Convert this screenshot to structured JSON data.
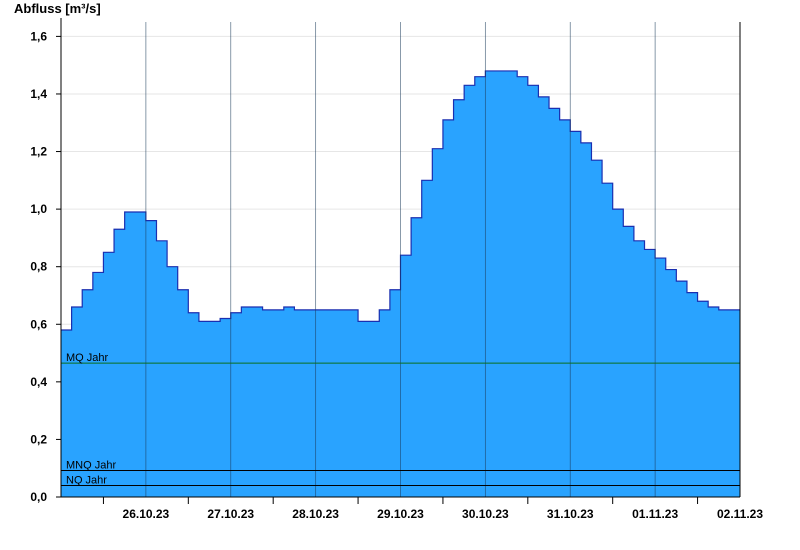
{
  "chart_data": {
    "type": "area",
    "title": "",
    "ylabel": "Abfluss [m³/s]",
    "xlabel": "",
    "ylim": [
      0,
      1.65
    ],
    "yticks": [
      0.0,
      0.2,
      0.4,
      0.6,
      0.8,
      1.0,
      1.2,
      1.4,
      1.6
    ],
    "ytick_labels": [
      "0,0",
      "0,2",
      "0,4",
      "0,6",
      "0,8",
      "1,0",
      "1,2",
      "1,4",
      "1,6"
    ],
    "x_start": "25.10.23 12:00",
    "x_end": "02.11.23 12:00",
    "x_days": [
      "26.10.23",
      "27.10.23",
      "28.10.23",
      "29.10.23",
      "30.10.23",
      "31.10.23",
      "01.11.23",
      "02.11.23"
    ],
    "grid": true,
    "fill_color": "#29a3ff",
    "line_color": "#1a2fb0",
    "series": [
      {
        "x": [
          "25.10.23 12:00",
          "25.10.23 15:00",
          "25.10.23 18:00",
          "25.10.23 21:00",
          "26.10.23 00:00",
          "26.10.23 03:00",
          "26.10.23 06:00",
          "26.10.23 09:00",
          "26.10.23 12:00",
          "26.10.23 15:00",
          "26.10.23 18:00",
          "26.10.23 21:00",
          "27.10.23 00:00",
          "27.10.23 03:00",
          "27.10.23 06:00",
          "27.10.23 09:00",
          "27.10.23 12:00",
          "27.10.23 15:00",
          "27.10.23 18:00",
          "27.10.23 21:00",
          "28.10.23 00:00",
          "28.10.23 03:00",
          "28.10.23 06:00",
          "28.10.23 09:00",
          "28.10.23 12:00",
          "28.10.23 15:00",
          "28.10.23 18:00",
          "28.10.23 21:00",
          "29.10.23 00:00",
          "29.10.23 03:00",
          "29.10.23 06:00",
          "29.10.23 09:00",
          "29.10.23 12:00",
          "29.10.23 15:00",
          "29.10.23 18:00",
          "29.10.23 21:00",
          "30.10.23 00:00",
          "30.10.23 03:00",
          "30.10.23 06:00",
          "30.10.23 09:00",
          "30.10.23 12:00",
          "30.10.23 15:00",
          "30.10.23 18:00",
          "30.10.23 21:00",
          "31.10.23 00:00",
          "31.10.23 03:00",
          "31.10.23 06:00",
          "31.10.23 09:00",
          "31.10.23 12:00",
          "31.10.23 15:00",
          "31.10.23 18:00",
          "31.10.23 21:00",
          "01.11.23 00:00",
          "01.11.23 03:00",
          "01.11.23 06:00",
          "01.11.23 09:00",
          "01.11.23 12:00",
          "01.11.23 15:00",
          "01.11.23 18:00",
          "01.11.23 21:00",
          "02.11.23 00:00",
          "02.11.23 03:00",
          "02.11.23 06:00",
          "02.11.23 09:00",
          "02.11.23 12:00"
        ],
        "values": [
          0.58,
          0.66,
          0.72,
          0.78,
          0.85,
          0.93,
          0.99,
          0.99,
          0.96,
          0.89,
          0.8,
          0.72,
          0.64,
          0.61,
          0.61,
          0.62,
          0.64,
          0.66,
          0.66,
          0.65,
          0.65,
          0.66,
          0.65,
          0.65,
          0.65,
          0.65,
          0.65,
          0.65,
          0.61,
          0.61,
          0.65,
          0.72,
          0.84,
          0.97,
          1.1,
          1.21,
          1.31,
          1.38,
          1.43,
          1.46,
          1.48,
          1.48,
          1.48,
          1.46,
          1.43,
          1.39,
          1.35,
          1.31,
          1.27,
          1.23,
          1.17,
          1.09,
          1.0,
          0.94,
          0.89,
          0.86,
          0.83,
          0.79,
          0.75,
          0.71,
          0.68,
          0.66,
          0.65,
          0.65,
          0.65
        ]
      }
    ],
    "reference_lines": [
      {
        "name": "MQ Jahr",
        "value": 0.465,
        "color": "#0a6e1e"
      },
      {
        "name": "MNQ Jahr",
        "value": 0.092,
        "color": "#000000"
      },
      {
        "name": "NQ Jahr",
        "value": 0.04,
        "color": "#000000"
      }
    ]
  }
}
